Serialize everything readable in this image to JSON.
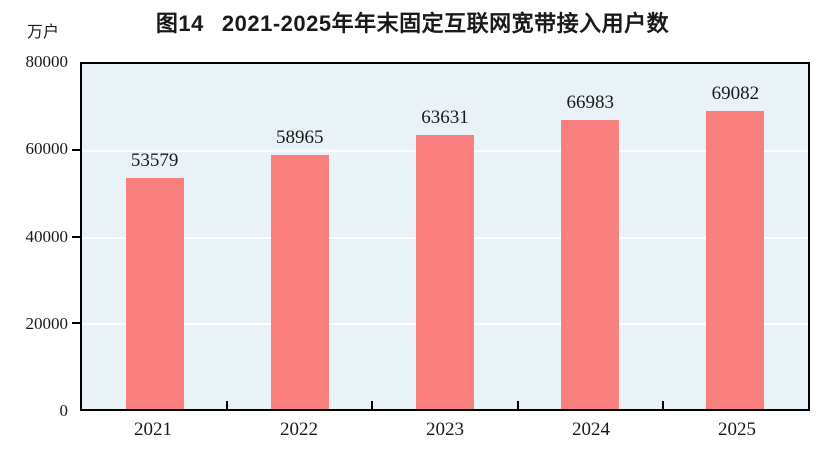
{
  "header": {
    "figure_label": "图14",
    "title": "2021-2025年年末固定互联网宽带接入用户数",
    "unit_label": "万户"
  },
  "chart_data": {
    "type": "bar",
    "title": "图14 2021-2025年年末固定互联网宽带接入用户数",
    "categories": [
      "2021",
      "2022",
      "2023",
      "2024",
      "2025"
    ],
    "values": [
      53579,
      58965,
      63631,
      66983,
      69082
    ],
    "xlabel": "",
    "ylabel": "万户",
    "ylim": [
      0,
      80000
    ],
    "yticks": [
      0,
      20000,
      40000,
      60000,
      80000
    ],
    "grid": true,
    "legend": false,
    "data_labels": true,
    "colors": {
      "bar": "#fa7f7f",
      "plot_background": "#e9f2f7",
      "gridline": "#ffffff",
      "axis": "#000000",
      "text": "#1a1a1a",
      "page_background": "#ffffff"
    }
  }
}
